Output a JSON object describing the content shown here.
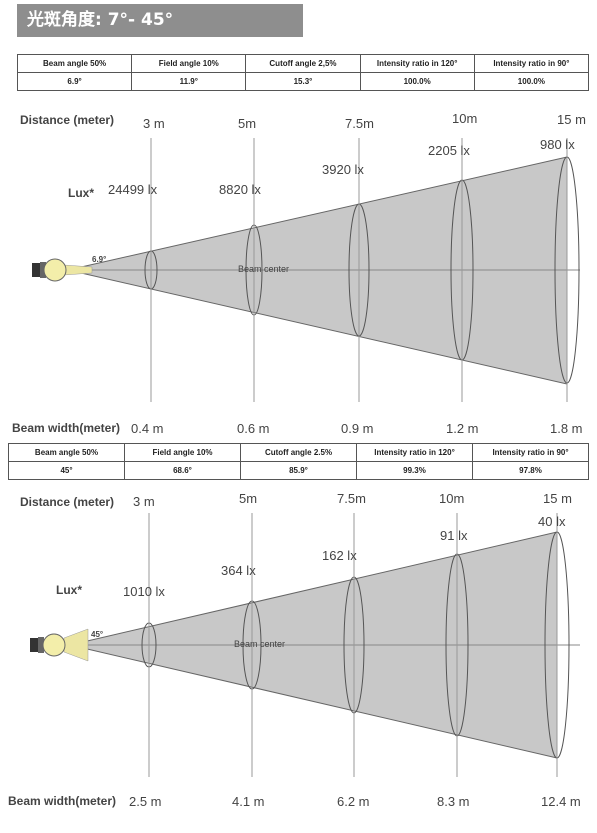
{
  "title": "光斑角度: 7°- 45°",
  "tables": [
    {
      "headers": [
        "Beam angle 50%",
        "Field angle 10%",
        "Cutoff angle 2,5%",
        "Intensity ratio in 120°",
        "Intensity ratio in 90°"
      ],
      "values": [
        "6.9°",
        "11.9°",
        "15.3°",
        "100.0%",
        "100.0%"
      ]
    },
    {
      "headers": [
        "Beam angle 50%",
        "Field angle 10%",
        "Cutoff angle 2.5%",
        "Intensity ratio in 120°",
        "Intensity ratio in 90°"
      ],
      "values": [
        "45°",
        "68.6°",
        "85.9°",
        "99.3%",
        "97.8%"
      ]
    }
  ],
  "diagrams": [
    {
      "distance_label": "Distance (meter)",
      "lux_label": "Lux*",
      "beam_width_label": "Beam width(meter)",
      "beam_center_label": "Beam center",
      "angle_label": "6.9°",
      "distances": [
        "3 m",
        "5m",
        "7.5m",
        "10m",
        "15 m"
      ],
      "lux": [
        "24499 lx",
        "8820 lx",
        "3920 lx",
        "2205 lx",
        "980 lx"
      ],
      "widths": [
        "0.4 m",
        "0.6 m",
        "0.9 m",
        "1.2 m",
        "1.8 m"
      ]
    },
    {
      "distance_label": "Distance (meter)",
      "lux_label": "Lux*",
      "beam_width_label": "Beam width(meter)",
      "beam_center_label": "Beam center",
      "angle_label": "45°",
      "distances": [
        "3 m",
        "5m",
        "7.5m",
        "10m",
        "15 m"
      ],
      "lux": [
        "1010 lx",
        "364 lx",
        "162 lx",
        "91 lx",
        "40 lx"
      ],
      "widths": [
        "2.5 m",
        "4.1 m",
        "6.2 m",
        "8.3 m",
        "12.4 m"
      ]
    }
  ],
  "colors": {
    "cone_fill": "#c8c8c8",
    "cone_stroke": "#555555",
    "bulb": "#f3eeaa",
    "title_bg": "#8e8e8e"
  }
}
